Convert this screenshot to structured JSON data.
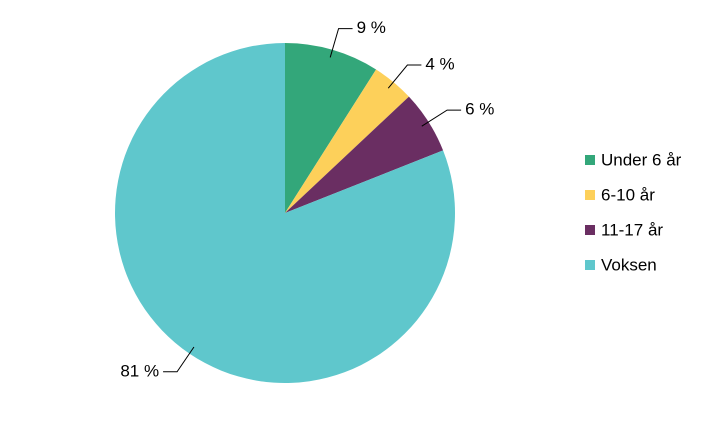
{
  "chart_data": {
    "type": "pie",
    "categories": [
      "Under 6 år",
      "6-10 år",
      "11-17 år",
      "Voksen"
    ],
    "values": [
      9,
      4,
      6,
      81
    ],
    "value_labels": [
      "9 %",
      "4 %",
      "6 %",
      "81 %"
    ],
    "colors": [
      "#33a77a",
      "#fdd05a",
      "#6a2e62",
      "#5fc7cc"
    ],
    "legend": "right"
  }
}
